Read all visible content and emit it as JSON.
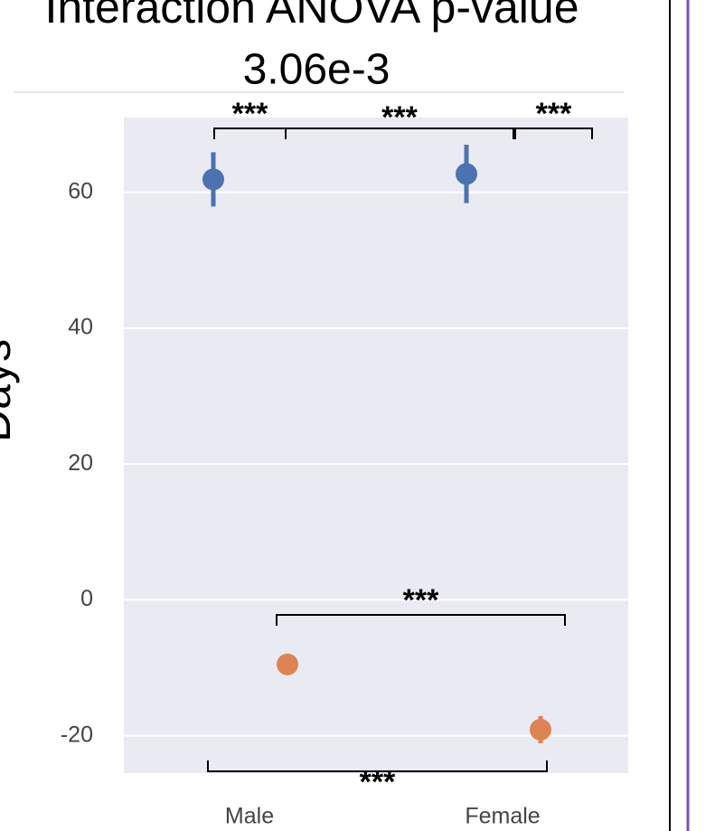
{
  "chart_data": {
    "type": "point",
    "title": "Interaction ANOVA p-value",
    "subtitle": "3.06e-3",
    "ylabel": "Days",
    "categories": [
      "Male",
      "Female"
    ],
    "series": [
      {
        "color": "#4c72b0",
        "values": [
          61.9,
          62.7
        ],
        "errors": [
          4,
          4.3
        ]
      },
      {
        "color": "#dd8452",
        "values": [
          -9.5,
          -19.1
        ],
        "errors": [
          1.5,
          2
        ]
      }
    ],
    "ylim": [
      -25.5,
      71
    ],
    "yticks": [
      -20,
      0,
      20,
      40,
      60
    ],
    "grid": true,
    "annotations": [
      "***",
      "***",
      "***",
      "***",
      "***"
    ]
  }
}
